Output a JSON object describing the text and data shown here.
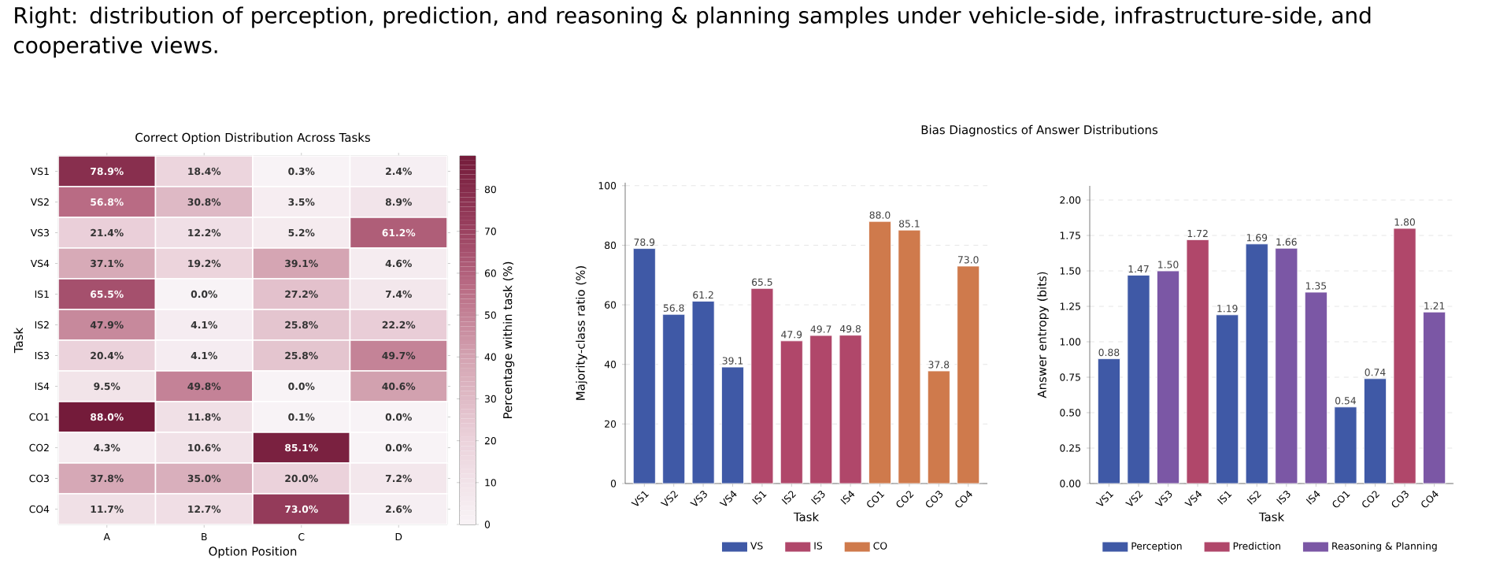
{
  "chart_data": [
    {
      "type": "heatmap",
      "title": "Correct Option Distribution Across Tasks",
      "xlabel": "Option Position",
      "ylabel": "Task",
      "clabel": "Percentage within task (%)",
      "annotations": [
        "Right: distribution of perception, prediction, and reasoning & planning samples under vehicle-side, infrastructure-side, and cooperative views."
      ],
      "categories": [
        "A",
        "B",
        "C",
        "D"
      ],
      "y_categories": [
        "VS1",
        "VS2",
        "VS3",
        "VS4",
        "IS1",
        "IS2",
        "IS3",
        "IS4",
        "CO1",
        "CO2",
        "CO3",
        "CO4"
      ],
      "cells": [
        [
          78.9,
          18.4,
          0.3,
          2.4
        ],
        [
          56.8,
          30.8,
          3.5,
          8.9
        ],
        [
          21.4,
          12.2,
          5.2,
          61.2
        ],
        [
          37.1,
          19.2,
          39.1,
          4.6
        ],
        [
          65.5,
          0.0,
          27.2,
          7.4
        ],
        [
          47.9,
          4.1,
          25.8,
          22.2
        ],
        [
          20.4,
          4.1,
          25.8,
          49.7
        ],
        [
          9.5,
          49.8,
          0.0,
          40.6
        ],
        [
          88.0,
          11.8,
          0.1,
          0.0
        ],
        [
          4.3,
          10.6,
          85.1,
          0.0
        ],
        [
          37.8,
          35.0,
          20.0,
          7.2
        ],
        [
          11.7,
          12.7,
          73.0,
          2.6
        ]
      ],
      "cell_labels": [
        [
          "78.9%",
          "18.4%",
          "0.3%",
          "2.4%"
        ],
        [
          "56.8%",
          "30.8%",
          "3.5%",
          "8.9%"
        ],
        [
          "21.4%",
          "12.2%",
          "5.2%",
          "61.2%"
        ],
        [
          "37.1%",
          "19.2%",
          "39.1%",
          "4.6%"
        ],
        [
          "65.5%",
          "0.0%",
          "27.2%",
          "7.4%"
        ],
        [
          "47.9%",
          "4.1%",
          "25.8%",
          "22.2%"
        ],
        [
          "20.4%",
          "4.1%",
          "25.8%",
          "49.7%"
        ],
        [
          "9.5%",
          "49.8%",
          "0.0%",
          "40.6%"
        ],
        [
          "88.0%",
          "11.8%",
          "0.1%",
          "0.0%"
        ],
        [
          "4.3%",
          "10.6%",
          "85.1%",
          "0.0%"
        ],
        [
          "37.8%",
          "35.0%",
          "20.0%",
          "7.2%"
        ],
        [
          "11.7%",
          "12.7%",
          "73.0%",
          "2.6%"
        ]
      ],
      "clim": [
        0,
        88
      ],
      "cticks": [
        0,
        10,
        20,
        30,
        40,
        50,
        60,
        70,
        80
      ]
    },
    {
      "type": "bar",
      "title": "Bias Diagnostics of Answer Distributions",
      "xlabel": "Task",
      "ylabel": "Majority-class ratio (%)",
      "categories": [
        "VS1",
        "VS2",
        "VS3",
        "VS4",
        "IS1",
        "IS2",
        "IS3",
        "IS4",
        "CO1",
        "CO2",
        "CO3",
        "CO4"
      ],
      "series": [
        {
          "name": "VS",
          "color": "#3f59a6",
          "values": [
            78.9,
            56.8,
            61.2,
            39.1,
            null,
            null,
            null,
            null,
            null,
            null,
            null,
            null
          ],
          "value_labels": [
            "78.9",
            "56.8",
            "61.2",
            "39.1",
            null,
            null,
            null,
            null,
            null,
            null,
            null,
            null
          ]
        },
        {
          "name": "IS",
          "color": "#b0476a",
          "values": [
            null,
            null,
            null,
            null,
            65.5,
            47.9,
            49.7,
            49.8,
            null,
            null,
            null,
            null
          ],
          "value_labels": [
            null,
            null,
            null,
            null,
            "65.5",
            "47.9",
            "49.7",
            "49.8",
            null,
            null,
            null,
            null
          ]
        },
        {
          "name": "CO",
          "color": "#cf7a4c",
          "values": [
            null,
            null,
            null,
            null,
            null,
            null,
            null,
            null,
            88.0,
            85.1,
            37.8,
            73.0
          ],
          "value_labels": [
            null,
            null,
            null,
            null,
            null,
            null,
            null,
            null,
            "88.0",
            "85.1",
            "37.8",
            "73.0"
          ]
        }
      ],
      "ylim": [
        0,
        101
      ],
      "yticks": [
        0,
        20,
        40,
        60,
        80,
        100
      ],
      "grid": "y",
      "legend": "bottom"
    },
    {
      "type": "bar",
      "xlabel": "Task",
      "ylabel": "Answer entropy (bits)",
      "categories": [
        "VS1",
        "VS2",
        "VS3",
        "VS4",
        "IS1",
        "IS2",
        "IS3",
        "IS4",
        "CO1",
        "CO2",
        "CO3",
        "CO4"
      ],
      "series": [
        {
          "name": "Perception",
          "color": "#3f59a6",
          "values": [
            0.88,
            1.47,
            null,
            null,
            1.19,
            1.69,
            null,
            null,
            0.54,
            0.74,
            null,
            null
          ],
          "value_labels": [
            "0.88",
            "1.47",
            null,
            null,
            "1.19",
            "1.69",
            null,
            null,
            "0.54",
            "0.74",
            null,
            null
          ]
        },
        {
          "name": "Prediction",
          "color": "#b0476a",
          "values": [
            null,
            null,
            null,
            1.72,
            null,
            null,
            null,
            null,
            null,
            null,
            1.8,
            null
          ],
          "value_labels": [
            null,
            null,
            null,
            "1.72",
            null,
            null,
            null,
            null,
            null,
            null,
            "1.80",
            null
          ]
        },
        {
          "name": "Reasoning & Planning",
          "color": "#7b57a5",
          "values": [
            null,
            null,
            1.5,
            null,
            null,
            null,
            1.66,
            1.35,
            null,
            null,
            null,
            1.21
          ],
          "value_labels": [
            null,
            null,
            "1.50",
            null,
            null,
            null,
            "1.66",
            "1.35",
            null,
            null,
            null,
            "1.21"
          ]
        }
      ],
      "ylim": [
        0,
        2.1
      ],
      "yticks": [
        {
          "value": 0,
          "label": "0.00"
        },
        {
          "value": 0.25,
          "label": "0.25"
        },
        {
          "value": 0.5,
          "label": "0.50"
        },
        {
          "value": 0.75,
          "label": "0.75"
        },
        {
          "value": 1,
          "label": "1.00"
        },
        {
          "value": 1.25,
          "label": "1.25"
        },
        {
          "value": 1.5,
          "label": "1.50"
        },
        {
          "value": 1.75,
          "label": "1.75"
        },
        {
          "value": 2,
          "label": "2.00"
        }
      ],
      "grid": "y",
      "legend": "bottom"
    }
  ]
}
